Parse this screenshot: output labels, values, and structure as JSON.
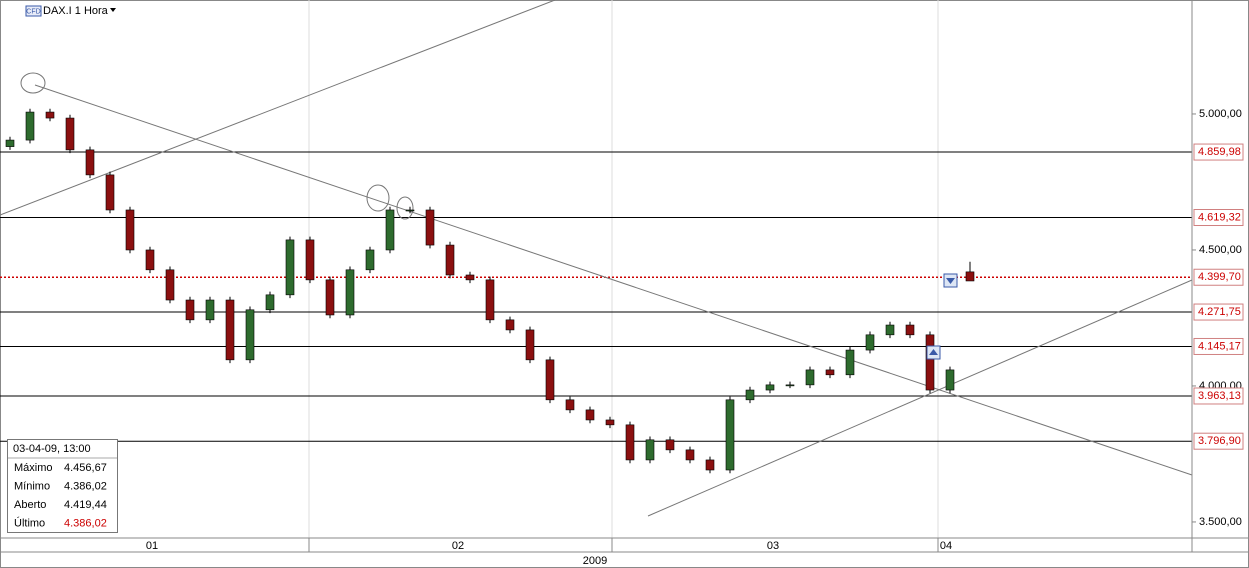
{
  "chart_data": {
    "type": "candlestick",
    "title": "DAX.I 1 Hora",
    "badge": "CFD",
    "x": [
      0.5,
      1.5,
      2.5,
      3.5,
      4.5,
      5.5,
      6.5,
      7.5,
      8.5,
      9.5,
      10.5,
      11.5,
      12.5,
      13.5,
      14.5,
      15.5,
      16.5,
      17.5,
      18.5,
      19.5,
      20.5,
      21.5,
      22.5,
      23.5,
      24.5,
      25.5,
      26.5,
      27.5,
      28.5,
      29.5,
      30.5,
      31.5,
      32.5,
      33.5,
      34.5,
      35.5,
      36.5,
      37.5,
      38.5,
      39.5,
      40.5,
      41.5,
      42.5,
      43.5,
      44.5,
      45.5,
      46.5,
      47.5,
      48.5
    ],
    "open": [
      4880,
      4904,
      5007,
      4985,
      4868,
      4776,
      4647,
      4500,
      4427,
      4316,
      4243,
      4316,
      4096,
      4280,
      4335,
      4537,
      4390,
      4261,
      4427,
      4500,
      4647,
      4647,
      4518,
      4408,
      4390,
      4243,
      4206,
      4096,
      3949,
      3912,
      3875,
      3857,
      3728,
      3802,
      3765,
      3728,
      3691,
      3949,
      3985,
      4004,
      4004,
      4059,
      4041,
      4132,
      4188,
      4224,
      4188,
      3985,
      4419.44
    ],
    "high": [
      4916,
      5019,
      5019,
      4997,
      4880,
      4788,
      4659,
      4512,
      4439,
      4328,
      4328,
      4328,
      4292,
      4347,
      4549,
      4549,
      4402,
      4439,
      4512,
      4659,
      4659,
      4659,
      4530,
      4420,
      4402,
      4255,
      4218,
      4108,
      3961,
      3924,
      3887,
      3869,
      3814,
      3814,
      3777,
      3740,
      3961,
      3997,
      4016,
      4016,
      4071,
      4071,
      4144,
      4200,
      4236,
      4236,
      4200,
      4071,
      4456.67
    ],
    "low": [
      4868,
      4892,
      4973,
      4856,
      4764,
      4635,
      4488,
      4415,
      4304,
      4231,
      4231,
      4084,
      4084,
      4268,
      4323,
      4378,
      4249,
      4249,
      4415,
      4488,
      4635,
      4506,
      4396,
      4378,
      4231,
      4194,
      4084,
      3937,
      3900,
      3863,
      3845,
      3716,
      3716,
      3753,
      3716,
      3679,
      3679,
      3937,
      3973,
      3992,
      3992,
      4029,
      4029,
      4120,
      4176,
      4176,
      3973,
      3973,
      4386.02
    ],
    "close": [
      4904,
      5007,
      4985,
      4868,
      4776,
      4647,
      4500,
      4427,
      4316,
      4243,
      4316,
      4096,
      4280,
      4335,
      4537,
      4390,
      4261,
      4427,
      4500,
      4647,
      4647,
      4518,
      4408,
      4390,
      4243,
      4206,
      4096,
      3949,
      3912,
      3875,
      3857,
      3728,
      3802,
      3765,
      3728,
      3691,
      3949,
      3985,
      4004,
      4004,
      4059,
      4041,
      4132,
      4188,
      4224,
      4188,
      3985,
      4059,
      4386.02
    ],
    "up_color": "#2e6b2e",
    "down_color": "#8b1010",
    "xlim": [
      0,
      59.6
    ],
    "xticks": [
      {
        "value": 7.6,
        "label": "01"
      },
      {
        "value": 22.9,
        "label": "02"
      },
      {
        "value": 38.65,
        "label": "03"
      },
      {
        "value": 47.3,
        "label": "04"
      }
    ],
    "year_label": "2009",
    "ylim": [
      3441,
      5419
    ],
    "yticks": [
      {
        "value": 5000,
        "label": "5.000,00"
      },
      {
        "value": 4500,
        "label": "4.500,00"
      },
      {
        "value": 4000,
        "label": "4.000,00"
      },
      {
        "value": 3500,
        "label": "3.500,00"
      }
    ],
    "levels": [
      {
        "value": 4859.98,
        "label": "4.859,98"
      },
      {
        "value": 4619.32,
        "label": "4.619,32"
      },
      {
        "value": 4399.7,
        "label": "4.399,70"
      },
      {
        "value": 4271.75,
        "label": "4.271,75"
      },
      {
        "value": 4145.17,
        "label": "4.145,17"
      },
      {
        "value": 3963.13,
        "label": "3.963,13"
      },
      {
        "value": 3796.9,
        "label": "3.796,90"
      }
    ],
    "current_level": 2,
    "info_box": {
      "title": "03-04-09, 13:00",
      "rows": [
        [
          "Máximo",
          "4.456,67"
        ],
        [
          "Mínimo",
          "4.386,02"
        ],
        [
          "Aberto",
          "4.419,44"
        ],
        [
          "Último",
          "4.386,02"
        ]
      ]
    }
  }
}
